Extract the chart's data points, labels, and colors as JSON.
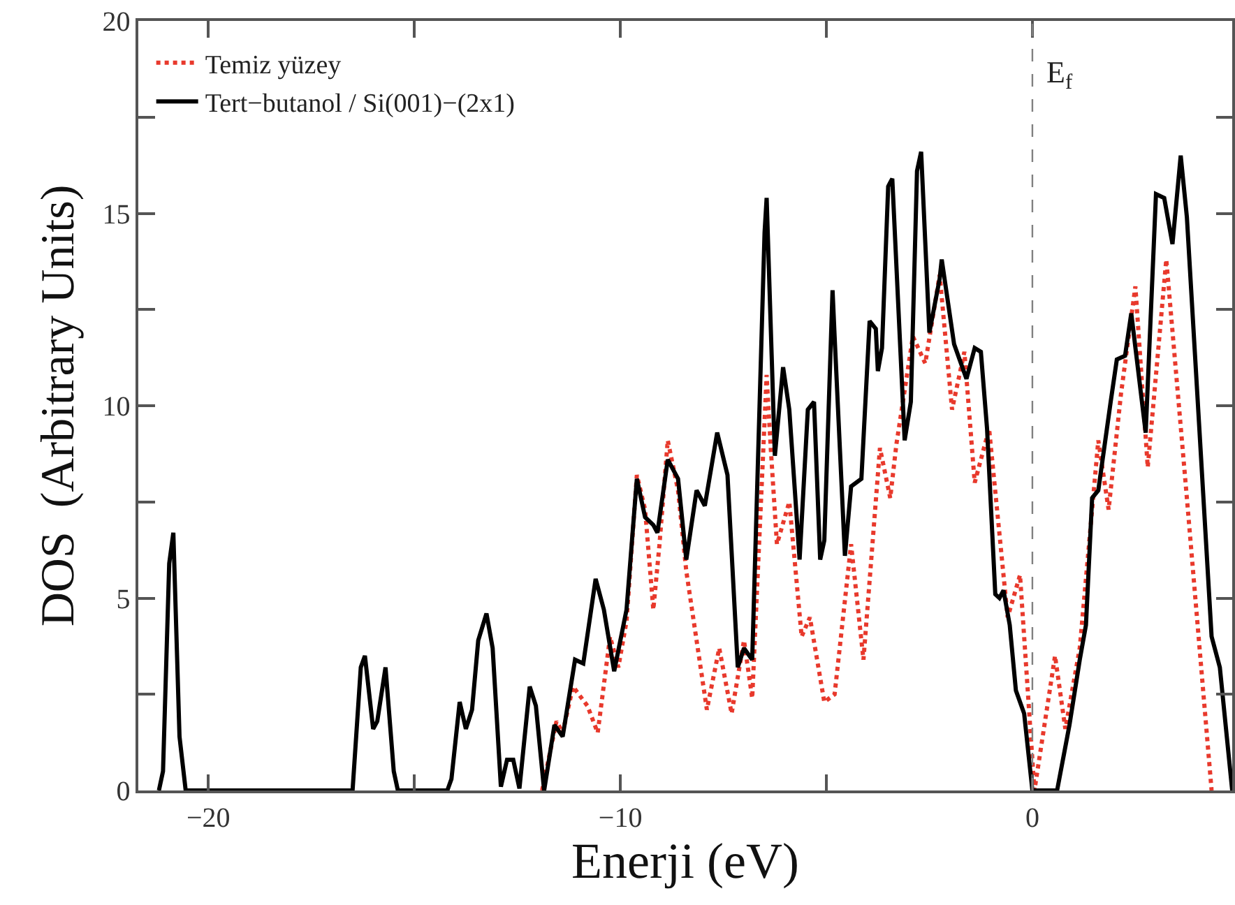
{
  "chart_data": {
    "type": "line",
    "xlabel": "Enerji (eV)",
    "ylabel": "DOS  (Arbitrary Units)",
    "xlim": [
      -21.7,
      4.85
    ],
    "ylim": [
      0,
      20
    ],
    "xticks": [
      -20,
      {
        "value": -15,
        "label": null
      },
      -10,
      {
        "value": -5,
        "label": null
      },
      0
    ],
    "yticks": [
      0,
      {
        "value": 2.5,
        "label": null
      },
      5,
      {
        "value": 7.5,
        "label": null
      },
      10,
      {
        "value": 12.5,
        "label": null
      },
      15,
      {
        "value": 17.5,
        "label": null
      },
      20
    ],
    "grid": false,
    "legend": "top left",
    "marker": "none",
    "ref_lines": [
      {
        "axis": "x",
        "value": 0,
        "label": "E$_{f}$",
        "color": "#808080",
        "line_style": "dashed"
      }
    ],
    "series": [
      {
        "name": "Temiz yüzey",
        "color": "#e8392c",
        "line_style": "dotted",
        "x": [
          -11.9,
          -11.55,
          -11.4,
          -11.15,
          -10.8,
          -10.55,
          -10.25,
          -10.05,
          -9.85,
          -9.6,
          -9.4,
          -9.2,
          -9.05,
          -8.85,
          -8.6,
          -8.4,
          -7.9,
          -7.6,
          -7.3,
          -7.0,
          -6.8,
          -6.45,
          -6.35,
          -6.2,
          -5.9,
          -5.6,
          -5.4,
          -5.05,
          -4.8,
          -4.4,
          -4.1,
          -3.7,
          -3.45,
          -3.3,
          -2.9,
          -2.6,
          -2.25,
          -1.95,
          -1.65,
          -1.4,
          -1.05,
          -0.6,
          -0.3,
          0.05,
          0.55,
          0.8,
          1.15,
          1.6,
          1.85,
          2.15,
          2.5,
          2.8,
          3.25,
          3.75,
          4.35
        ],
        "values": [
          0,
          1.8,
          1.5,
          2.7,
          2.2,
          1.5,
          4.0,
          3.2,
          4.4,
          8.2,
          7.3,
          4.7,
          6.4,
          9.1,
          7.8,
          5.7,
          2.1,
          3.7,
          2.0,
          3.9,
          2.4,
          10.8,
          8.9,
          6.4,
          7.5,
          4.0,
          4.5,
          2.3,
          2.5,
          6.4,
          3.4,
          8.9,
          7.6,
          9.0,
          11.8,
          11.1,
          13.4,
          9.9,
          11.4,
          8.0,
          9.4,
          4.5,
          5.6,
          0,
          3.5,
          1.6,
          3.7,
          9.1,
          7.3,
          10.3,
          13.1,
          8.4,
          13.8,
          7.6,
          0
        ]
      },
      {
        "name": "Tert−butanol / Si(001)−(2x1)",
        "color": "#000000",
        "line_style": "solid",
        "x": [
          -21.2,
          -21.1,
          -20.95,
          -20.85,
          -20.7,
          -20.55,
          -16.5,
          -16.3,
          -16.2,
          -16.0,
          -15.9,
          -15.7,
          -15.5,
          -15.4,
          -14.2,
          -14.1,
          -13.9,
          -13.75,
          -13.6,
          -13.45,
          -13.25,
          -13.1,
          -12.9,
          -12.75,
          -12.6,
          -12.45,
          -12.2,
          -12.05,
          -11.85,
          -11.6,
          -11.4,
          -11.1,
          -10.9,
          -10.6,
          -10.4,
          -10.15,
          -9.85,
          -9.6,
          -9.4,
          -9.2,
          -9.1,
          -8.85,
          -8.6,
          -8.4,
          -8.15,
          -7.95,
          -7.65,
          -7.4,
          -7.15,
          -7.0,
          -6.8,
          -6.5,
          -6.45,
          -6.25,
          -6.05,
          -5.9,
          -5.65,
          -5.45,
          -5.3,
          -5.15,
          -5.05,
          -4.85,
          -4.8,
          -4.55,
          -4.4,
          -4.15,
          -3.95,
          -3.8,
          -3.75,
          -3.65,
          -3.5,
          -3.4,
          -3.1,
          -2.95,
          -2.8,
          -2.7,
          -2.5,
          -2.25,
          -2.2,
          -1.9,
          -1.6,
          -1.4,
          -1.25,
          -1.1,
          -0.9,
          -0.8,
          -0.7,
          -0.55,
          -0.4,
          -0.2,
          0,
          0.6,
          0.9,
          1.15,
          1.3,
          1.45,
          1.6,
          1.9,
          2.05,
          2.25,
          2.4,
          2.75,
          3.0,
          3.2,
          3.4,
          3.6,
          3.75,
          4.35,
          4.55,
          4.85
        ],
        "values": [
          0,
          0.5,
          5.9,
          6.7,
          1.4,
          0,
          0,
          3.2,
          3.5,
          1.6,
          1.8,
          3.2,
          0.5,
          0,
          0,
          0.3,
          2.3,
          1.6,
          2.1,
          3.9,
          4.6,
          3.7,
          0.1,
          0.8,
          0.8,
          0.05,
          2.7,
          2.2,
          0,
          1.7,
          1.4,
          3.4,
          3.3,
          5.5,
          4.7,
          3.1,
          4.7,
          8.1,
          7.1,
          6.9,
          6.7,
          8.6,
          8.1,
          6.0,
          7.8,
          7.4,
          9.3,
          8.2,
          3.2,
          3.7,
          3.4,
          14.5,
          15.4,
          8.7,
          11.0,
          9.9,
          6.0,
          9.9,
          10.1,
          6.0,
          6.5,
          13.0,
          11.8,
          6.1,
          7.9,
          8.1,
          12.2,
          12.0,
          10.9,
          11.5,
          15.7,
          15.9,
          9.1,
          10.1,
          16.1,
          16.6,
          11.9,
          13.3,
          13.8,
          11.6,
          10.7,
          11.5,
          11.4,
          9.4,
          5.1,
          5.0,
          5.2,
          4.3,
          2.6,
          2.0,
          0,
          0,
          1.7,
          3.4,
          4.3,
          7.6,
          7.8,
          10.1,
          11.2,
          11.3,
          12.4,
          9.3,
          15.5,
          15.4,
          14.2,
          16.5,
          14.9,
          4.0,
          3.2,
          0
        ]
      }
    ]
  }
}
